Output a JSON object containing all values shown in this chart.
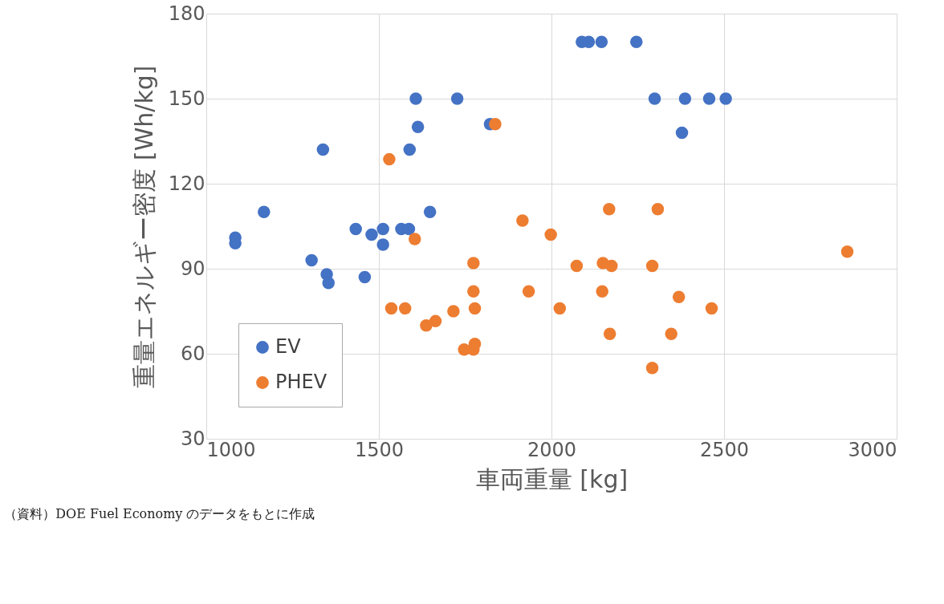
{
  "chart_data": {
    "type": "scatter",
    "xlabel": "車両重量 [kg]",
    "ylabel": "重量エネルギー密度 [Wh/kg]",
    "xlim": [
      1000,
      3000
    ],
    "xticks": [
      1000,
      1500,
      2000,
      2500,
      3000
    ],
    "ylim": [
      30,
      180
    ],
    "yticks": [
      30,
      60,
      90,
      120,
      150,
      180
    ],
    "grid": true,
    "legend": "bottom left",
    "marker": "circle",
    "annotations": [
      "（資料）DOE Fuel Economy のデータをもとに作成"
    ],
    "series": [
      {
        "name": "EV",
        "color": "#4472c4",
        "x": [
          1084,
          1084,
          1167,
          1305,
          1338,
          1349,
          1354,
          1433,
          1459,
          1479,
          1512,
          1512,
          1565,
          1587,
          1589,
          1607,
          1613,
          1648,
          1727,
          1822,
          2088,
          2108,
          2145,
          2246,
          2299,
          2378,
          2387,
          2457,
          2505
        ],
        "values": [
          101,
          99,
          110,
          93,
          132,
          88,
          85,
          104,
          87,
          102,
          104,
          98.5,
          104,
          104,
          132,
          150,
          140,
          110,
          150,
          141,
          170,
          170,
          170,
          170,
          150,
          138,
          150,
          150,
          150
        ]
      },
      {
        "name": "PHEV",
        "color": "#ed7d31",
        "x": [
          1837,
          1530,
          1604,
          1536,
          1576,
          1637,
          1664,
          1716,
          1747,
          1774,
          1778,
          1774,
          1774,
          1776,
          1778,
          1916,
          1934,
          1998,
          2024,
          2073,
          2147,
          2149,
          2167,
          2169,
          2174,
          2292,
          2292,
          2308,
          2347,
          2369,
          2464,
          2857
        ],
        "values": [
          141,
          128.6,
          100.5,
          76,
          76,
          70,
          71.5,
          75,
          61.5,
          61.5,
          63.5,
          92,
          82,
          null,
          76,
          107,
          82,
          102,
          76,
          91,
          82,
          92,
          111,
          67,
          91,
          91,
          55,
          111,
          67,
          80,
          76,
          96
        ]
      }
    ]
  }
}
